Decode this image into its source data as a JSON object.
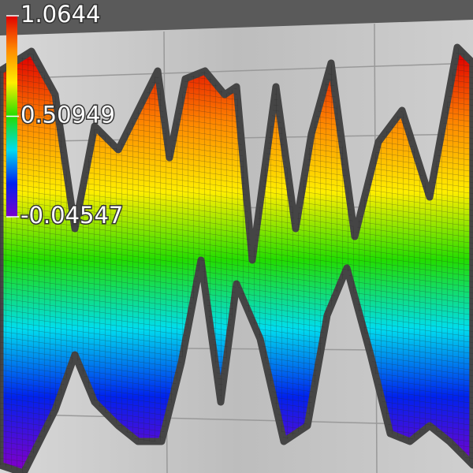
{
  "chart_data": {
    "type": "surface",
    "colormap": [
      "#e00000",
      "#ff8800",
      "#ffee00",
      "#22dd00",
      "#00ddee",
      "#0022ee",
      "#7a00cc"
    ],
    "clim": [
      -0.04547,
      1.0644
    ],
    "cticks": [
      1.0644,
      0.50949,
      -0.04547
    ]
  }
}
